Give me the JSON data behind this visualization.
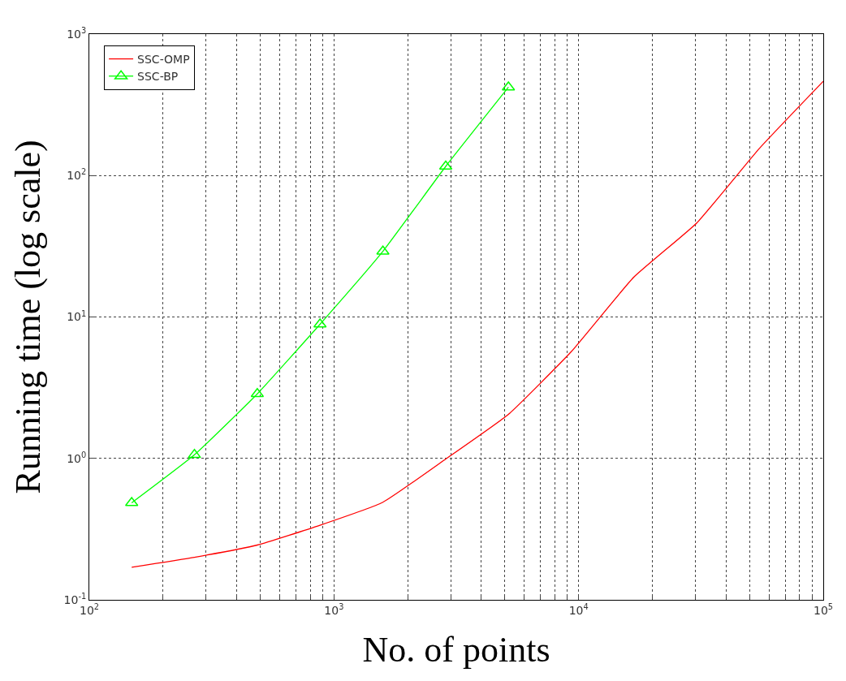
{
  "chart_data": {
    "type": "line",
    "xlabel": "No. of points",
    "ylabel": "Running time (log scale)",
    "log": "xy",
    "xlim": [
      100,
      100000
    ],
    "ylim": [
      0.1,
      1000
    ],
    "xticks": [
      {
        "value": 100,
        "label": "10$^{2}$"
      },
      {
        "value": 200,
        "label": null
      },
      {
        "value": 300,
        "label": null
      },
      {
        "value": 400,
        "label": null
      },
      {
        "value": 500,
        "label": null
      },
      {
        "value": 600,
        "label": null
      },
      {
        "value": 700,
        "label": null
      },
      {
        "value": 800,
        "label": null
      },
      {
        "value": 900,
        "label": null
      },
      {
        "value": 1000,
        "label": "10$^{3}$"
      },
      {
        "value": 2000,
        "label": null
      },
      {
        "value": 3000,
        "label": null
      },
      {
        "value": 4000,
        "label": null
      },
      {
        "value": 5000,
        "label": null
      },
      {
        "value": 6000,
        "label": null
      },
      {
        "value": 7000,
        "label": null
      },
      {
        "value": 8000,
        "label": null
      },
      {
        "value": 9000,
        "label": null
      },
      {
        "value": 10000,
        "label": "10$^{4}$"
      },
      {
        "value": 20000,
        "label": null
      },
      {
        "value": 30000,
        "label": null
      },
      {
        "value": 40000,
        "label": null
      },
      {
        "value": 50000,
        "label": null
      },
      {
        "value": 60000,
        "label": null
      },
      {
        "value": 70000,
        "label": null
      },
      {
        "value": 80000,
        "label": null
      },
      {
        "value": 90000,
        "label": null
      },
      {
        "value": 100000,
        "label": "10$^{5}$"
      }
    ],
    "yticks": [
      {
        "value": 0.1,
        "label": "10$^{-1}$"
      },
      {
        "value": 1,
        "label": "10$^{0}$"
      },
      {
        "value": 10,
        "label": "10$^{1}$"
      },
      {
        "value": 100,
        "label": "10$^{2}$"
      },
      {
        "value": 1000,
        "label": "10$^{3}$"
      }
    ],
    "grid": true,
    "legend": "top left",
    "line_style": "solid",
    "series": [
      {
        "name": "SSC-OMP",
        "color": "#ff0000",
        "marker": "none",
        "x": [
          149,
          269,
          486,
          877,
          1585,
          2863,
          5166,
          9330,
          16800,
          30400,
          54900,
          100000
        ],
        "values": [
          0.17,
          0.2,
          0.244,
          0.337,
          0.49,
          0.99,
          2.05,
          5.68,
          19.1,
          46.2,
          156,
          464
        ]
      },
      {
        "name": "SSC-BP",
        "color": "#00ff00",
        "marker": "triangle",
        "x": [
          149,
          269,
          486,
          877,
          1585,
          2863,
          5166
        ],
        "values": [
          0.485,
          1.06,
          2.86,
          8.88,
          29.1,
          116,
          421
        ]
      }
    ]
  }
}
